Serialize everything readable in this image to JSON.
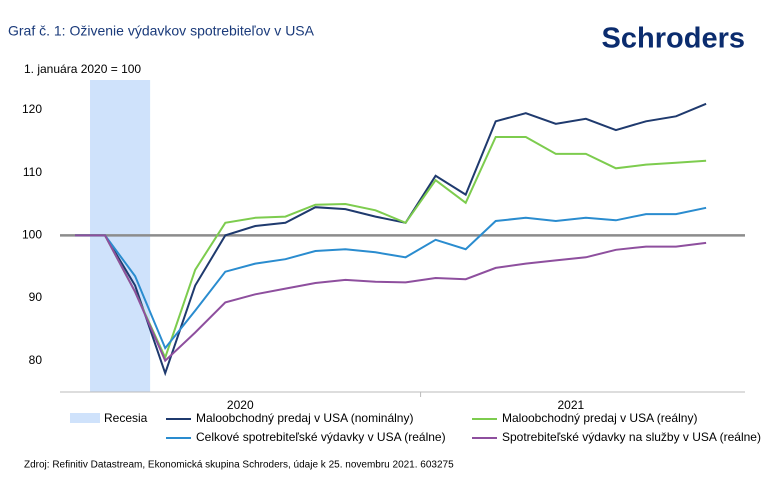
{
  "chart_data": {
    "type": "line",
    "title": "Graf č. 1: Oživenie výdavkov spotrebiteľov v USA",
    "logo": "Schroders",
    "y_label": "1. januára 2020 = 100",
    "source": "Zdroj: Refinitiv Datastream, Ekonomická skupina Schroders, údaje k 25. novembru 2021. 603275",
    "categories": [
      null,
      null,
      null,
      null,
      null,
      null,
      null,
      null,
      null,
      null,
      null,
      null,
      null,
      null,
      null,
      null,
      null,
      null,
      null,
      null,
      null,
      null
    ],
    "xgroups": [
      {
        "label": "2020",
        "start": 0,
        "end": 11
      },
      {
        "label": "2021",
        "start": 12,
        "end": 21
      }
    ],
    "shaded": {
      "label": "Recesia",
      "start": 1,
      "end": 3,
      "color": "#cfe2fb"
    },
    "hline": 100,
    "ylim": [
      75,
      124
    ],
    "yticks": [
      80,
      90,
      100,
      110,
      120
    ],
    "grid": false,
    "series": [
      {
        "name": "Maloobchodný predaj v USA (nominálny)",
        "color": "#1f3a6e",
        "values": [
          100,
          100,
          92,
          78,
          92,
          100,
          101.5,
          102,
          104.5,
          104.2,
          103,
          102,
          109.5,
          106.5,
          118.2,
          119.5,
          117.8,
          118.6,
          116.8,
          118.2,
          119,
          121
        ]
      },
      {
        "name": "Maloobchodný predaj v USA (reálny)",
        "color": "#7dcc4e",
        "values": [
          100,
          100,
          91,
          80.5,
          94.5,
          102,
          102.8,
          103,
          104.9,
          105,
          104,
          102,
          108.8,
          105.2,
          115.7,
          115.7,
          113,
          113,
          110.7,
          111.3,
          111.6,
          111.9
        ]
      },
      {
        "name": "Celkové spotrebiteľské výdavky v USA (reálne)",
        "color": "#2a8ccf",
        "values": [
          100,
          100,
          93.5,
          82,
          88,
          94.2,
          95.5,
          96.2,
          97.5,
          97.8,
          97.3,
          96.5,
          99.3,
          97.8,
          102.3,
          102.8,
          102.3,
          102.8,
          102.4,
          103.4,
          103.4,
          104.4
        ]
      },
      {
        "name": "Spotrebiteľské výdavky na služby v USA (reálne)",
        "color": "#8e4f9e",
        "values": [
          100,
          100,
          91,
          80,
          84.5,
          89.3,
          90.6,
          91.5,
          92.4,
          92.9,
          92.6,
          92.5,
          93.2,
          93,
          94.8,
          95.5,
          96,
          96.5,
          97.7,
          98.2,
          98.2,
          98.8
        ]
      }
    ]
  }
}
